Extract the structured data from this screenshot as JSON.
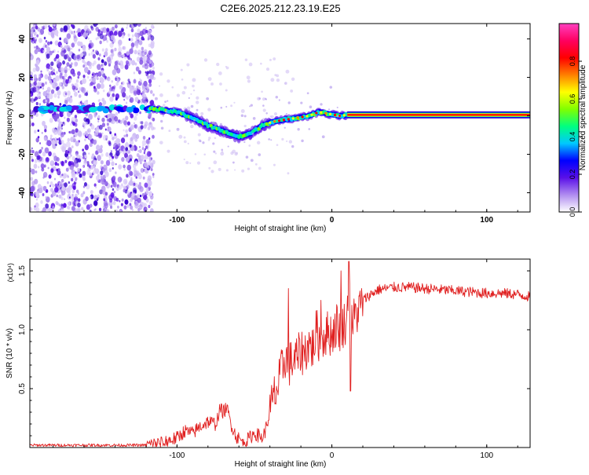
{
  "title": "C2E6.2025.212.23.19.E25",
  "chart_data": [
    {
      "type": "heatmap",
      "xlabel": "Height of straight line (km)",
      "ylabel": "Frequency (Hz)",
      "xlim": [
        -195,
        128
      ],
      "ylim": [
        -50,
        48
      ],
      "xticks": [
        -100,
        0,
        100
      ],
      "xtick_labels": [
        "-100",
        "0",
        "100"
      ],
      "yticks": [
        -40,
        -20,
        0,
        20,
        40
      ],
      "ytick_labels": [
        "-40",
        "-20",
        "0",
        "20",
        "40"
      ],
      "colorbar": {
        "label": "Normalized spectral amplitude",
        "range": [
          0,
          1
        ],
        "ticks": [
          0,
          0.2,
          0.4,
          0.6,
          0.8
        ],
        "tick_labels": [
          "0.0",
          "0.2",
          "0.4",
          "0.6",
          "0.8"
        ],
        "colors": [
          "#ffffff",
          "#b08cf0",
          "#5a10e8",
          "#0000ff",
          "#00c8ff",
          "#00ff80",
          "#80ff00",
          "#ffff00",
          "#ff8000",
          "#ff0000",
          "#ff0060",
          "#ff40c0"
        ]
      },
      "ridge": {
        "x": [
          -118,
          -110,
          -100,
          -90,
          -80,
          -70,
          -60,
          -52,
          -45,
          -38,
          -30,
          -22,
          -15,
          -8,
          -2,
          5,
          10,
          128
        ],
        "y": [
          4,
          3,
          2,
          -1,
          -5,
          -8,
          -11,
          -9,
          -5,
          -3,
          -2,
          -1,
          0,
          2,
          1,
          0,
          0.5,
          0.5
        ]
      },
      "noise_band": {
        "x": [
          -195,
          -115
        ],
        "y": [
          -50,
          48
        ]
      },
      "noise_line": {
        "x": [
          -195,
          -118
        ],
        "y": 3.5
      }
    },
    {
      "type": "line",
      "xlabel": "Height of straight line (km)",
      "ylabel": "SNR (10 * v/v)",
      "y_multiplier": "(x10⁴)",
      "xlim": [
        -195,
        128
      ],
      "ylim": [
        0,
        1.6
      ],
      "xticks": [
        -100,
        0,
        100
      ],
      "xtick_labels": [
        "-100",
        "0",
        "100"
      ],
      "yticks": [
        0.5,
        1.0,
        1.5
      ],
      "ytick_labels": [
        "0.5",
        "1.0",
        "1.5"
      ],
      "color": "#e02020",
      "series": [
        {
          "x": [
            -195,
            -180,
            -160,
            -140,
            -120,
            -110,
            -100,
            -95,
            -90,
            -85,
            -80,
            -75,
            -72,
            -70,
            -68,
            -65,
            -62,
            -58,
            -55,
            -50,
            -47,
            -45,
            -43,
            -40,
            -37,
            -35,
            -33,
            -30,
            -28,
            -25,
            -22,
            -20,
            -18,
            -15,
            -12,
            -10,
            -8,
            -5,
            -2,
            0,
            3,
            5,
            8,
            10,
            11,
            12,
            15,
            18,
            20,
            25,
            30,
            35,
            40,
            50,
            60,
            70,
            80,
            90,
            100,
            110,
            120,
            128
          ],
          "y": [
            0.02,
            0.02,
            0.02,
            0.02,
            0.02,
            0.04,
            0.08,
            0.14,
            0.12,
            0.18,
            0.22,
            0.2,
            0.33,
            0.3,
            0.34,
            0.2,
            0.1,
            0.05,
            0.06,
            0.12,
            0.1,
            0.08,
            0.14,
            0.3,
            0.45,
            0.5,
            0.62,
            0.78,
            0.7,
            0.74,
            0.76,
            0.82,
            0.8,
            0.88,
            0.84,
            1.0,
            0.9,
            0.95,
            0.98,
            0.96,
            1.05,
            1.0,
            1.05,
            1.1,
            1.58,
            1.0,
            1.12,
            1.18,
            1.25,
            1.3,
            1.34,
            1.35,
            1.36,
            1.36,
            1.35,
            1.34,
            1.33,
            1.32,
            1.31,
            1.31,
            1.3,
            1.28
          ]
        }
      ],
      "spikes": [
        {
          "x": -28,
          "y": 1.35
        },
        {
          "x": 11,
          "y": 1.58
        },
        {
          "x": 6,
          "y": 1.5
        },
        {
          "x": 12,
          "y": 0.48
        },
        {
          "x": -7,
          "y": 1.25
        }
      ]
    }
  ]
}
